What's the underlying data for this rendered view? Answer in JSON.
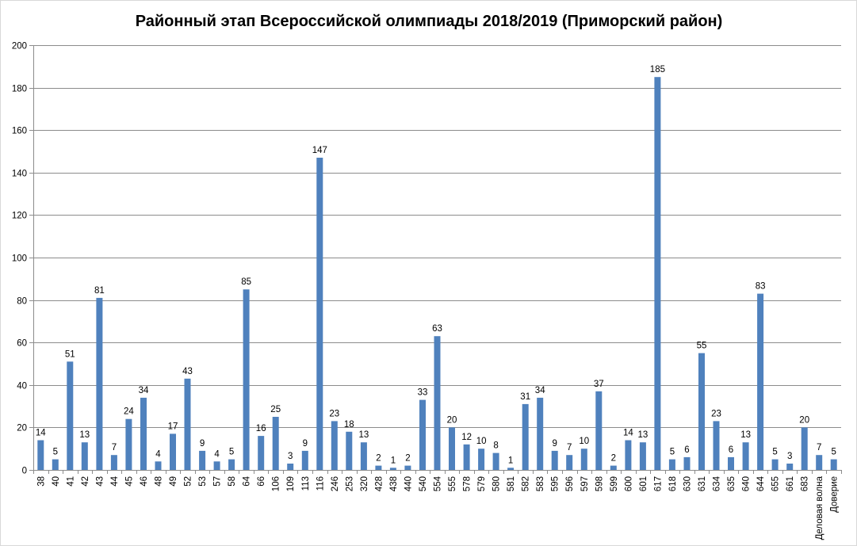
{
  "chart_data": {
    "type": "bar",
    "title": "Районный этап Всероссийской олимпиады 2018/2019 (Приморский район)",
    "xlabel": "",
    "ylabel": "",
    "ylim": [
      0,
      200
    ],
    "yticks": [
      0,
      20,
      40,
      60,
      80,
      100,
      120,
      140,
      160,
      180,
      200
    ],
    "grid": true,
    "legend": "none",
    "bar_color": "#4f81bd",
    "categories": [
      "38",
      "40",
      "41",
      "42",
      "43",
      "44",
      "45",
      "46",
      "48",
      "49",
      "52",
      "53",
      "57",
      "58",
      "64",
      "66",
      "106",
      "109",
      "113",
      "116",
      "246",
      "253",
      "320",
      "428",
      "438",
      "440",
      "540",
      "554",
      "555",
      "578",
      "579",
      "580",
      "581",
      "582",
      "583",
      "595",
      "596",
      "597",
      "598",
      "599",
      "600",
      "601",
      "617",
      "618",
      "630",
      "631",
      "634",
      "635",
      "640",
      "644",
      "655",
      "661",
      "683",
      "Деловая волна",
      "Доверие"
    ],
    "values": [
      14,
      5,
      51,
      13,
      81,
      7,
      24,
      34,
      4,
      17,
      43,
      9,
      4,
      5,
      85,
      16,
      25,
      3,
      9,
      147,
      23,
      18,
      13,
      2,
      1,
      2,
      33,
      63,
      20,
      12,
      10,
      8,
      1,
      31,
      34,
      9,
      7,
      10,
      37,
      2,
      14,
      13,
      185,
      5,
      6,
      55,
      23,
      6,
      13,
      83,
      5,
      3,
      20,
      7,
      5
    ]
  }
}
